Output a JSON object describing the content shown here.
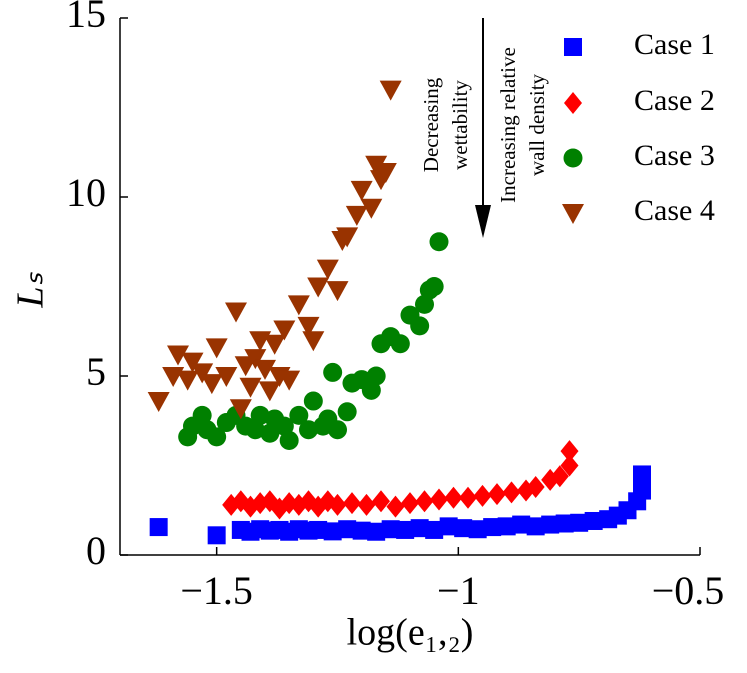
{
  "chart_data": {
    "type": "scatter",
    "xlabel": "log(e₁,₂)",
    "ylabel": "Lₛ",
    "xlim": [
      -1.7,
      -0.5
    ],
    "ylim": [
      0,
      15
    ],
    "xticks": [
      {
        "value": -1.5,
        "label": "−1.5"
      },
      {
        "value": -1,
        "label": "−1"
      },
      {
        "value": -0.5,
        "label": "−0.5"
      }
    ],
    "yticks": [
      0,
      5,
      10,
      15
    ],
    "legend": "upper right",
    "annotations": [
      [
        "Decreasing",
        "wettability"
      ],
      [
        "Increasing relative",
        "wall density"
      ]
    ],
    "series": [
      {
        "name": "Case 1",
        "color": "#0000ff",
        "marker": "square",
        "x": [
          -1.62,
          -1.5,
          -1.45,
          -1.43,
          -1.41,
          -1.39,
          -1.37,
          -1.35,
          -1.33,
          -1.31,
          -1.29,
          -1.26,
          -1.23,
          -1.2,
          -1.17,
          -1.14,
          -1.11,
          -1.08,
          -1.05,
          -1.02,
          -0.99,
          -0.96,
          -0.93,
          -0.9,
          -0.87,
          -0.84,
          -0.81,
          -0.78,
          -0.75,
          -0.72,
          -0.69,
          -0.67,
          -0.65,
          -0.63,
          -0.62,
          -0.62,
          -0.62
        ],
        "values": [
          0.78,
          0.55,
          0.7,
          0.65,
          0.72,
          0.68,
          0.7,
          0.65,
          0.72,
          0.68,
          0.7,
          0.66,
          0.72,
          0.68,
          0.65,
          0.72,
          0.7,
          0.75,
          0.7,
          0.8,
          0.75,
          0.72,
          0.78,
          0.8,
          0.85,
          0.8,
          0.85,
          0.88,
          0.9,
          0.95,
          1.0,
          1.1,
          1.25,
          1.5,
          1.8,
          2.0,
          2.25
        ]
      },
      {
        "name": "Case 2",
        "color": "#ff0000",
        "marker": "diamond",
        "x": [
          -1.47,
          -1.45,
          -1.43,
          -1.41,
          -1.39,
          -1.37,
          -1.35,
          -1.33,
          -1.31,
          -1.29,
          -1.27,
          -1.25,
          -1.22,
          -1.19,
          -1.16,
          -1.13,
          -1.1,
          -1.07,
          -1.04,
          -1.01,
          -0.98,
          -0.95,
          -0.92,
          -0.89,
          -0.86,
          -0.84,
          -0.81,
          -0.79,
          -0.77,
          -0.77
        ],
        "values": [
          1.4,
          1.5,
          1.35,
          1.45,
          1.5,
          1.3,
          1.45,
          1.4,
          1.5,
          1.35,
          1.5,
          1.4,
          1.45,
          1.4,
          1.5,
          1.35,
          1.45,
          1.5,
          1.55,
          1.6,
          1.6,
          1.65,
          1.7,
          1.75,
          1.8,
          1.9,
          2.1,
          2.2,
          2.5,
          2.9
        ]
      },
      {
        "name": "Case 3",
        "color": "#008000",
        "marker": "circle",
        "x": [
          -1.56,
          -1.55,
          -1.53,
          -1.52,
          -1.5,
          -1.48,
          -1.46,
          -1.44,
          -1.42,
          -1.41,
          -1.39,
          -1.38,
          -1.36,
          -1.35,
          -1.33,
          -1.31,
          -1.3,
          -1.28,
          -1.27,
          -1.26,
          -1.25,
          -1.23,
          -1.22,
          -1.2,
          -1.18,
          -1.17,
          -1.16,
          -1.14,
          -1.12,
          -1.1,
          -1.08,
          -1.07,
          -1.06,
          -1.05,
          -1.04
        ],
        "values": [
          3.3,
          3.6,
          3.9,
          3.5,
          3.3,
          3.7,
          3.9,
          3.6,
          3.5,
          3.9,
          3.4,
          3.8,
          3.6,
          3.2,
          3.9,
          3.5,
          4.3,
          3.6,
          3.8,
          5.1,
          3.5,
          4.0,
          4.8,
          4.9,
          4.6,
          5.0,
          5.9,
          6.1,
          5.9,
          6.7,
          6.4,
          7.0,
          7.4,
          7.5,
          8.75
        ]
      },
      {
        "name": "Case 4",
        "color": "#993300",
        "marker": "triangle-down",
        "x": [
          -1.62,
          -1.59,
          -1.58,
          -1.56,
          -1.55,
          -1.53,
          -1.51,
          -1.5,
          -1.48,
          -1.46,
          -1.45,
          -1.44,
          -1.43,
          -1.42,
          -1.41,
          -1.4,
          -1.39,
          -1.38,
          -1.37,
          -1.36,
          -1.35,
          -1.33,
          -1.31,
          -1.3,
          -1.29,
          -1.27,
          -1.25,
          -1.24,
          -1.23,
          -1.21,
          -1.2,
          -1.18,
          -1.17,
          -1.16,
          -1.15,
          -1.14
        ],
        "values": [
          4.3,
          5.0,
          5.6,
          4.9,
          5.4,
          5.1,
          4.8,
          5.8,
          5.0,
          6.8,
          4.1,
          5.3,
          4.7,
          5.5,
          6.0,
          5.2,
          4.6,
          5.9,
          5.0,
          6.3,
          4.9,
          7.0,
          6.4,
          6.0,
          7.5,
          8.0,
          7.4,
          8.8,
          8.9,
          9.5,
          10.2,
          9.7,
          10.9,
          10.5,
          10.7,
          13.0
        ]
      }
    ]
  }
}
